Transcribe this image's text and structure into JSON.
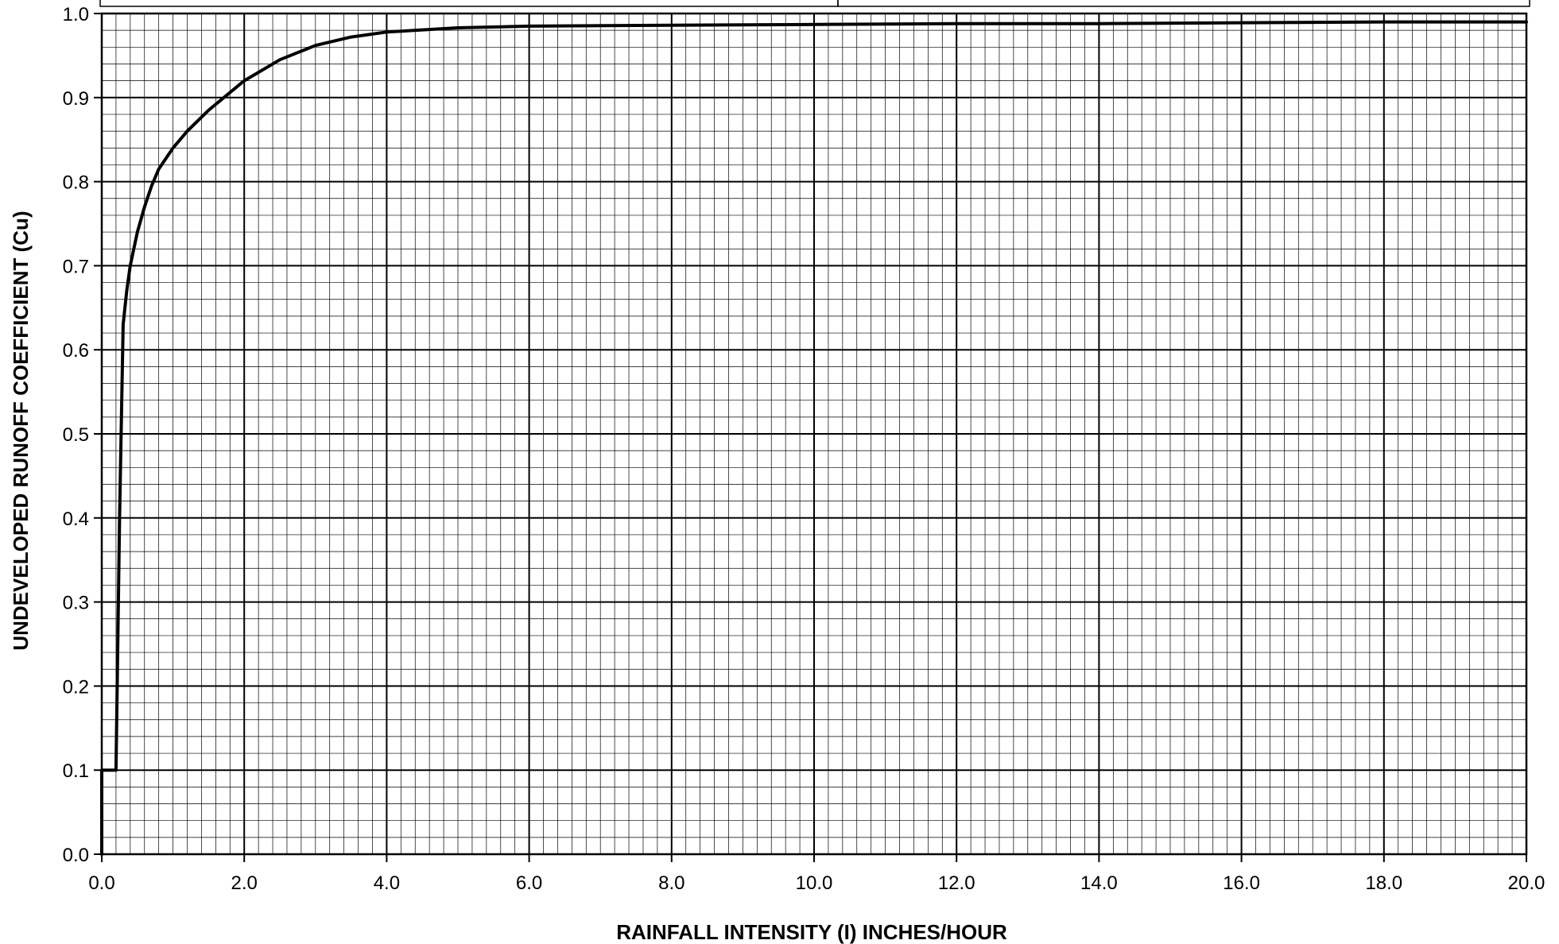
{
  "chart_data": {
    "type": "line",
    "title": "",
    "xlabel": "RAINFALL INTENSITY (I) INCHES/HOUR",
    "ylabel": "UNDEVELOPED RUNOFF COEFFICIENT (Cu)",
    "xlim": [
      0,
      20
    ],
    "ylim": [
      0,
      1
    ],
    "x_ticks": [
      "0.0",
      "2.0",
      "4.0",
      "6.0",
      "8.0",
      "10.0",
      "12.0",
      "14.0",
      "16.0",
      "18.0",
      "20.0"
    ],
    "y_ticks": [
      "0.0",
      "0.1",
      "0.2",
      "0.3",
      "0.4",
      "0.5",
      "0.6",
      "0.7",
      "0.8",
      "0.9",
      "1.0"
    ],
    "grid": true,
    "minor_grid_x_step": 0.2,
    "minor_grid_y_step": 0.02,
    "legend": "none",
    "line_color": "#000000",
    "series": [
      {
        "x": [
          0.0,
          0.0,
          0.2,
          0.25,
          0.3,
          0.35,
          0.4,
          0.5,
          0.6,
          0.7,
          0.8,
          1.0,
          1.2,
          1.5,
          2.0,
          2.5,
          3.0,
          3.5,
          4.0,
          5.0,
          6.0,
          8.0,
          10.0,
          12.0,
          14.0,
          16.0,
          18.0,
          20.0
        ],
        "y": [
          0.0,
          0.1,
          0.1,
          0.4,
          0.63,
          0.67,
          0.7,
          0.74,
          0.77,
          0.795,
          0.815,
          0.84,
          0.86,
          0.885,
          0.92,
          0.945,
          0.962,
          0.972,
          0.978,
          0.983,
          0.985,
          0.986,
          0.987,
          0.988,
          0.988,
          0.989,
          0.99,
          0.99
        ]
      }
    ]
  }
}
